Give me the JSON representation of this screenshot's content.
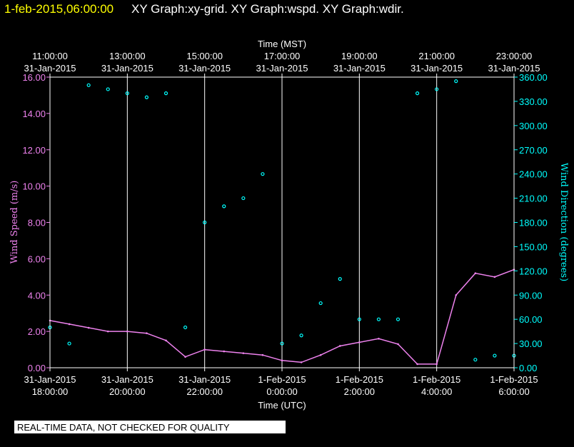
{
  "header": {
    "datetime": "1-feb-2015,06:00:00",
    "titles": "XY Graph:xy-grid.  XY Graph:wspd.  XY Graph:wdir."
  },
  "footer": {
    "qc_notice": "REAL-TIME DATA, NOT CHECKED FOR QUALITY"
  },
  "colors": {
    "background": "#000000",
    "datetime_text": "#ffff00",
    "axes": "#ffffff",
    "wind_speed": "#ee82ee",
    "wind_direction": "#00ffff"
  },
  "chart_data": {
    "type": "scatter",
    "top_axis": {
      "label": "Time (MST)",
      "ticks": [
        {
          "time": "11:00:00",
          "date": "31-Jan-2015"
        },
        {
          "time": "13:00:00",
          "date": "31-Jan-2015"
        },
        {
          "time": "15:00:00",
          "date": "31-Jan-2015"
        },
        {
          "time": "17:00:00",
          "date": "31-Jan-2015"
        },
        {
          "time": "19:00:00",
          "date": "31-Jan-2015"
        },
        {
          "time": "21:00:00",
          "date": "31-Jan-2015"
        },
        {
          "time": "23:00:00",
          "date": "31-Jan-2015"
        }
      ]
    },
    "bottom_axis": {
      "label": "Time (UTC)",
      "ticks": [
        {
          "date": "31-Jan-2015",
          "time": "18:00:00"
        },
        {
          "date": "31-Jan-2015",
          "time": "20:00:00"
        },
        {
          "date": "31-Jan-2015",
          "time": "22:00:00"
        },
        {
          "date": "1-Feb-2015",
          "time": "0:00:00"
        },
        {
          "date": "1-Feb-2015",
          "time": "2:00:00"
        },
        {
          "date": "1-Feb-2015",
          "time": "4:00:00"
        },
        {
          "date": "1-Feb-2015",
          "time": "6:00:00"
        }
      ],
      "range_utc_hours": [
        18,
        30
      ]
    },
    "left_axis": {
      "label": "Wind Speed (m/s)",
      "ticks": [
        "0.00",
        "2.00",
        "4.00",
        "6.00",
        "8.00",
        "10.00",
        "12.00",
        "14.00",
        "16.00"
      ],
      "range": [
        0,
        16
      ]
    },
    "right_axis": {
      "label": "Wind Direction (degrees)",
      "ticks": [
        "0.00",
        "30.00",
        "60.00",
        "90.00",
        "120.00",
        "150.00",
        "180.00",
        "210.00",
        "240.00",
        "270.00",
        "300.00",
        "330.00",
        "360.00"
      ],
      "range": [
        0,
        360
      ]
    },
    "grid": "vertical lines at top-axis ticks",
    "series": [
      {
        "name": "Wind Speed (m/s)",
        "style": "line",
        "color": "#ee82ee",
        "x_utc_hours": [
          18.0,
          18.5,
          19.0,
          19.5,
          20.0,
          20.5,
          21.0,
          21.5,
          22.0,
          22.5,
          23.0,
          23.5,
          24.0,
          24.5,
          25.0,
          25.5,
          26.0,
          26.5,
          27.0,
          27.5,
          28.0,
          28.5,
          29.0,
          29.5,
          30.0
        ],
        "y": [
          2.6,
          2.4,
          2.2,
          2.0,
          2.0,
          1.9,
          1.5,
          0.6,
          1.0,
          0.9,
          0.8,
          0.7,
          0.4,
          0.3,
          0.7,
          1.2,
          1.4,
          1.6,
          1.3,
          0.2,
          0.2,
          4.0,
          5.2,
          5.0,
          5.4
        ]
      },
      {
        "name": "Wind Direction (degrees)",
        "style": "scatter",
        "color": "#00ffff",
        "x_utc_hours": [
          18.0,
          18.5,
          19.0,
          19.5,
          20.0,
          20.5,
          21.0,
          21.5,
          22.0,
          22.5,
          23.0,
          23.5,
          24.0,
          24.5,
          25.0,
          25.5,
          26.0,
          26.5,
          27.0,
          27.5,
          28.0,
          28.5,
          29.0,
          29.5,
          30.0
        ],
        "y": [
          50,
          30,
          350,
          345,
          340,
          335,
          340,
          50,
          180,
          200,
          210,
          240,
          30,
          40,
          80,
          110,
          60,
          60,
          60,
          340,
          345,
          355,
          10,
          15,
          15
        ]
      }
    ]
  }
}
